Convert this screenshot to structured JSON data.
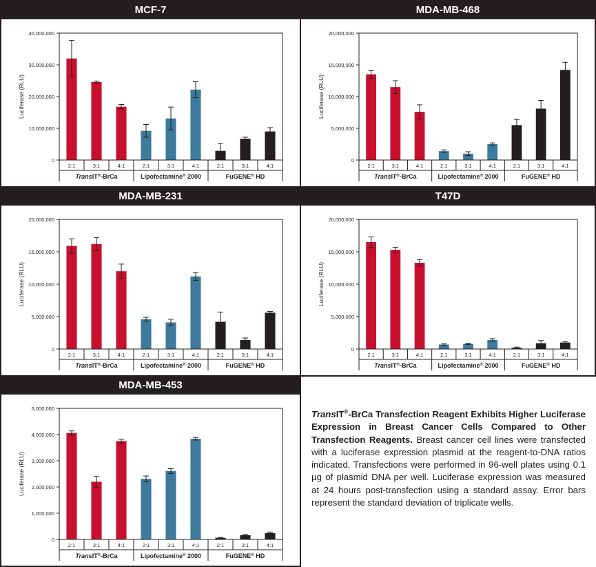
{
  "colors": {
    "transit": "#c8102e",
    "lipofectamine": "#3d7a9c",
    "fugene": "#231f20",
    "axis": "#231f20"
  },
  "ratios": [
    "2:1",
    "3:1",
    "4:1"
  ],
  "groups": [
    {
      "prefix": "Trans",
      "rest": "IT",
      "sup": "®",
      "suffix": "-BrCa"
    },
    {
      "prefix": "",
      "rest": "Lipofectamine",
      "sup": "®",
      "suffix": " 2000"
    },
    {
      "prefix": "",
      "rest": "FuGENE",
      "sup": "®",
      "suffix": " HD"
    }
  ],
  "ylabel": "Luciferase (RLU)",
  "chart_data": [
    {
      "type": "bar",
      "title": "MCF-7",
      "ylim": [
        0,
        40000000
      ],
      "yticks": [
        "0",
        "10,000,000",
        "20,000,000",
        "30,000,000",
        "40,000,000"
      ],
      "categories": [
        "2:1",
        "3:1",
        "4:1"
      ],
      "series": [
        {
          "name": "TransIT®-BrCa",
          "values": [
            32000000,
            24600000,
            16800000
          ],
          "errors": [
            5700000,
            300000,
            700000
          ]
        },
        {
          "name": "Lipofectamine® 2000",
          "values": [
            9200000,
            13100000,
            22200000
          ],
          "errors": [
            2000000,
            3600000,
            2500000
          ]
        },
        {
          "name": "FuGENE® HD",
          "values": [
            2900000,
            6700000,
            9000000
          ],
          "errors": [
            2400000,
            500000,
            1200000
          ]
        }
      ]
    },
    {
      "type": "bar",
      "title": "MDA-MB-468",
      "ylim": [
        0,
        20000000
      ],
      "yticks": [
        "0",
        "5,000,000",
        "10,000,000",
        "15,000,000",
        "20,000,000"
      ],
      "categories": [
        "2:1",
        "3:1",
        "4:1"
      ],
      "series": [
        {
          "name": "TransIT®-BrCa",
          "values": [
            13500000,
            11500000,
            7600000
          ],
          "errors": [
            600000,
            1000000,
            1100000
          ]
        },
        {
          "name": "Lipofectamine® 2000",
          "values": [
            1400000,
            1000000,
            2500000
          ],
          "errors": [
            200000,
            300000,
            200000
          ]
        },
        {
          "name": "FuGENE® HD",
          "values": [
            5500000,
            8100000,
            14200000
          ],
          "errors": [
            900000,
            1300000,
            1200000
          ]
        }
      ]
    },
    {
      "type": "bar",
      "title": "MDA-MB-231",
      "ylim": [
        0,
        20000000
      ],
      "yticks": [
        "0",
        "5,000,000",
        "10,000,000",
        "15,000,000",
        "20,000,000"
      ],
      "categories": [
        "2:1",
        "3:1",
        "4:1"
      ],
      "series": [
        {
          "name": "TransIT®-BrCa",
          "values": [
            15900000,
            16200000,
            12000000
          ],
          "errors": [
            1100000,
            1000000,
            1100000
          ]
        },
        {
          "name": "Lipofectamine® 2000",
          "values": [
            4600000,
            4100000,
            11200000
          ],
          "errors": [
            300000,
            500000,
            600000
          ]
        },
        {
          "name": "FuGENE® HD",
          "values": [
            4200000,
            1400000,
            5600000
          ],
          "errors": [
            1500000,
            300000,
            200000
          ]
        }
      ]
    },
    {
      "type": "bar",
      "title": "T47D",
      "ylim": [
        0,
        20000000
      ],
      "yticks": [
        "0",
        "5,000,000",
        "10,000,000",
        "15,000,000",
        "20,000,000"
      ],
      "categories": [
        "2:1",
        "3:1",
        "4:1"
      ],
      "series": [
        {
          "name": "TransIT®-BrCa",
          "values": [
            16500000,
            15300000,
            13300000
          ],
          "errors": [
            800000,
            400000,
            500000
          ]
        },
        {
          "name": "Lipofectamine® 2000",
          "values": [
            700000,
            800000,
            1400000
          ],
          "errors": [
            100000,
            100000,
            200000
          ]
        },
        {
          "name": "FuGENE® HD",
          "values": [
            200000,
            900000,
            1000000
          ],
          "errors": [
            100000,
            400000,
            150000
          ]
        }
      ]
    },
    {
      "type": "bar",
      "title": "MDA-MB-453",
      "ylim": [
        0,
        5000000
      ],
      "yticks": [
        "0",
        "1,000,000",
        "2,000,000",
        "3,000,000",
        "4,000,000",
        "5,000,000"
      ],
      "categories": [
        "2:1",
        "3:1",
        "4:1"
      ],
      "series": [
        {
          "name": "TransIT®-BrCa",
          "values": [
            4060000,
            2200000,
            3750000
          ],
          "errors": [
            80000,
            200000,
            70000
          ]
        },
        {
          "name": "Lipofectamine® 2000",
          "values": [
            2310000,
            2610000,
            3840000
          ],
          "errors": [
            110000,
            90000,
            50000
          ]
        },
        {
          "name": "FuGENE® HD",
          "values": [
            60000,
            160000,
            240000
          ],
          "errors": [
            10000,
            30000,
            40000
          ]
        }
      ]
    }
  ],
  "caption": {
    "title_it": "Trans",
    "title_rest": "IT",
    "title_sup": "®",
    "title_bold": "-BrCa Transfection Reagent Exhibits Higher Luciferase Expression in Breast Cancer Cells Compared to Other Transfection Reagents.",
    "body": " Breast cancer cell lines were transfected with a luciferase expression plasmid at the reagent-to-DNA ratios indicated. Transfections were performed in 96-well plates using 0.1 µg of plasmid DNA per well. Luciferase expression was measured at 24 hours post-transfection using a standard assay. Error bars represent the standard deviation of triplicate wells."
  }
}
